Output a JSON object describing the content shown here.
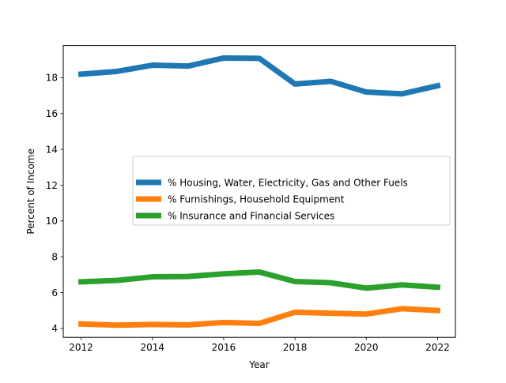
{
  "chart_data": {
    "type": "line",
    "xlabel": "Year",
    "ylabel": "Percent of Income",
    "xlim": [
      2011.5,
      2022.5
    ],
    "ylim": [
      3.5,
      19.8
    ],
    "x_ticks": [
      2012,
      2014,
      2016,
      2018,
      2020,
      2022
    ],
    "y_ticks": [
      4,
      6,
      8,
      10,
      12,
      14,
      16,
      18
    ],
    "x": [
      2012,
      2013,
      2014,
      2015,
      2016,
      2017,
      2018,
      2019,
      2020,
      2021,
      2022
    ],
    "legend_position": "center-right",
    "series": [
      {
        "name": "% Housing, Water, Electricity, Gas and Other Fuels",
        "color": "#1f77b4",
        "values": [
          18.2,
          18.35,
          18.7,
          18.65,
          19.1,
          19.08,
          17.65,
          17.8,
          17.2,
          17.1,
          17.55
        ]
      },
      {
        "name": "% Furnishings, Household Equipment",
        "color": "#ff7f0e",
        "values": [
          4.25,
          4.18,
          4.22,
          4.2,
          4.33,
          4.28,
          4.9,
          4.85,
          4.8,
          5.1,
          5.0
        ]
      },
      {
        "name": "% Insurance and Financial Services",
        "color": "#2ca02c",
        "values": [
          6.6,
          6.68,
          6.88,
          6.9,
          7.05,
          7.15,
          6.62,
          6.55,
          6.25,
          6.43,
          6.3
        ]
      }
    ]
  }
}
